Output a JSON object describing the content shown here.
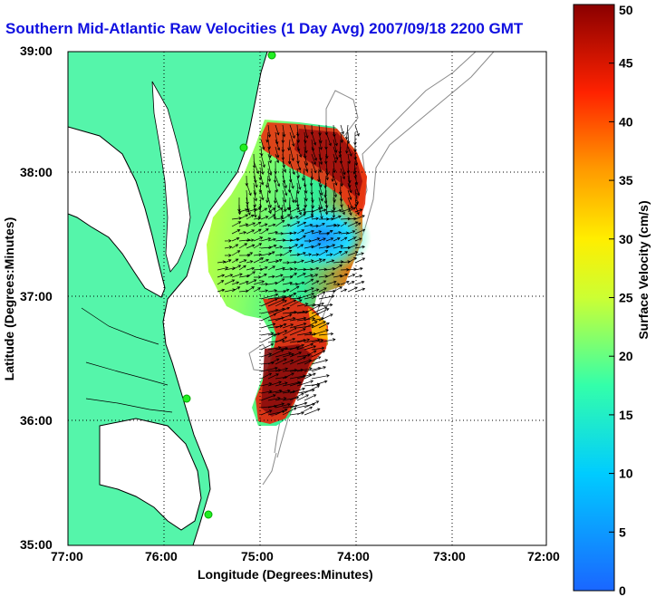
{
  "title": "Southern Mid-Atlantic Raw Velocities (1 Day Avg) 2007/09/18 2200 GMT",
  "x_axis": {
    "label": "Longitude (Degrees:Minutes)",
    "ticks": [
      "77:00",
      "76:00",
      "75:00",
      "74:00",
      "73:00",
      "72:00"
    ],
    "values": [
      -77,
      -76,
      -75,
      -74,
      -73,
      -72
    ]
  },
  "y_axis": {
    "label": "Latitude (Degrees:Minutes)",
    "ticks": [
      "39:00",
      "38:00",
      "37:00",
      "36:00",
      "35:00"
    ],
    "values": [
      39,
      38,
      37,
      36,
      35
    ]
  },
  "colorbar": {
    "label": "Surface Velocity (cm/s)",
    "ticks": [
      "50",
      "45",
      "40",
      "35",
      "30",
      "25",
      "20",
      "15",
      "10",
      "5",
      "0"
    ],
    "min": 0,
    "max": 50,
    "unit": "cm/s"
  },
  "colors": {
    "land": "#55f5aa",
    "ocean": "#ffffff",
    "coast": "#000000",
    "bathymetry": "#8a8a8a",
    "stations": "#22ee22",
    "title": "#1010e0"
  },
  "map_extent": {
    "lon": [
      -77,
      -72
    ],
    "lat": [
      35,
      39
    ]
  }
}
